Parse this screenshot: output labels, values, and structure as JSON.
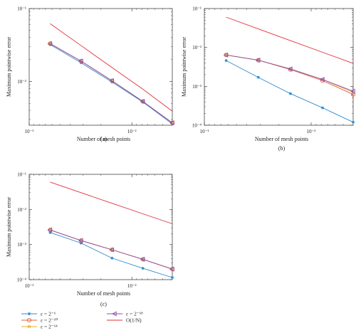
{
  "series_styles": [
    {
      "key": "eps6",
      "color": "#2e8bcf",
      "marker": "star"
    },
    {
      "key": "eps10",
      "color": "#e0603a",
      "marker": "circle"
    },
    {
      "key": "eps14",
      "color": "#e8b01e",
      "marker": "x"
    },
    {
      "key": "eps18",
      "color": "#8a4bb0",
      "marker": "triangle-left"
    },
    {
      "key": "ref",
      "color": "#e0303a",
      "marker": "none"
    }
  ],
  "legend": [
    {
      "key": "eps6",
      "label": "ε = 2⁻⁶"
    },
    {
      "key": "eps18",
      "label": "ε = 2⁻¹⁸"
    },
    {
      "key": "eps10",
      "label": "ε = 2⁻¹⁰"
    },
    {
      "key": "ref",
      "label": "O(1/N)"
    },
    {
      "key": "eps14",
      "label": "ε = 2⁻¹⁴"
    }
  ],
  "chart_data": [
    {
      "type": "line",
      "panel": "(a)",
      "xlabel": "Number of mesh points",
      "ylabel": "Maximum pointwise error",
      "x_scale": "log",
      "y_scale": "log",
      "x_ticks": [
        "10⁻¹",
        "10⁻²"
      ],
      "y_ticks": [
        "10⁻¹",
        "10⁻²"
      ],
      "xlim": [
        0.1,
        0.00404
      ],
      "ylim": [
        0.0025,
        0.1
      ],
      "x": [
        0.0625,
        0.03125,
        0.015625,
        0.0078125,
        0.00404
      ],
      "series": [
        {
          "key": "eps6",
          "values": [
            0.032,
            0.018,
            0.0098,
            0.0052,
            0.0026
          ]
        },
        {
          "key": "eps10",
          "values": [
            0.033,
            0.019,
            0.0102,
            0.0053,
            0.0027
          ]
        },
        {
          "key": "eps14",
          "values": [
            0.033,
            0.019,
            0.0102,
            0.0053,
            0.0027
          ]
        },
        {
          "key": "eps18",
          "values": [
            0.033,
            0.019,
            0.0102,
            0.0053,
            0.0027
          ]
        },
        {
          "key": "ref",
          "values": [
            0.062,
            0.031,
            0.0155,
            0.0078,
            0.0039
          ]
        }
      ]
    },
    {
      "type": "line",
      "panel": "(b)",
      "xlabel": "Number of mesh points",
      "ylabel": "Maximum pointwise error",
      "x_scale": "log",
      "y_scale": "log",
      "x_ticks": [
        "10⁻¹",
        "10⁻²"
      ],
      "y_ticks": [
        "10⁻¹",
        "10⁻²",
        "10⁻³",
        "10⁻⁴"
      ],
      "xlim": [
        0.1,
        0.00404
      ],
      "ylim": [
        0.0001,
        0.1
      ],
      "x": [
        0.0625,
        0.03125,
        0.015625,
        0.0078125,
        0.00404
      ],
      "series": [
        {
          "key": "eps6",
          "values": [
            0.0046,
            0.0017,
            0.00065,
            0.00028,
            0.00012
          ]
        },
        {
          "key": "eps10",
          "values": [
            0.0064,
            0.0047,
            0.0027,
            0.0014,
            0.00062
          ]
        },
        {
          "key": "eps14",
          "values": [
            0.0064,
            0.0047,
            0.0028,
            0.0015,
            0.0007
          ]
        },
        {
          "key": "eps18",
          "values": [
            0.0064,
            0.0047,
            0.0028,
            0.0015,
            0.00075
          ]
        },
        {
          "key": "ref",
          "values": [
            0.06,
            0.03,
            0.015,
            0.0075,
            0.0039
          ]
        }
      ]
    },
    {
      "type": "line",
      "panel": "(c)",
      "xlabel": "Number of mesh points",
      "ylabel": "Maximum pointwise error",
      "x_scale": "log",
      "y_scale": "log",
      "x_ticks": [
        "10⁻¹",
        "10⁻²"
      ],
      "y_ticks": [
        "10⁻¹",
        "10⁻²",
        "10⁻³",
        "10⁻⁴"
      ],
      "xlim": [
        0.1,
        0.00404
      ],
      "ylim": [
        0.0001,
        0.1
      ],
      "x": [
        0.0625,
        0.03125,
        0.015625,
        0.0078125,
        0.00404
      ],
      "series": [
        {
          "key": "eps6",
          "values": [
            0.0022,
            0.0011,
            0.00041,
            0.00021,
            0.000115
          ]
        },
        {
          "key": "eps10",
          "values": [
            0.0026,
            0.0013,
            0.00071,
            0.00038,
            0.0002
          ]
        },
        {
          "key": "eps14",
          "values": [
            0.0026,
            0.0013,
            0.00071,
            0.00038,
            0.0002
          ]
        },
        {
          "key": "eps18",
          "values": [
            0.0026,
            0.0013,
            0.00071,
            0.00038,
            0.0002
          ]
        },
        {
          "key": "ref",
          "values": [
            0.06,
            0.03,
            0.015,
            0.0075,
            0.0039
          ]
        }
      ]
    }
  ]
}
